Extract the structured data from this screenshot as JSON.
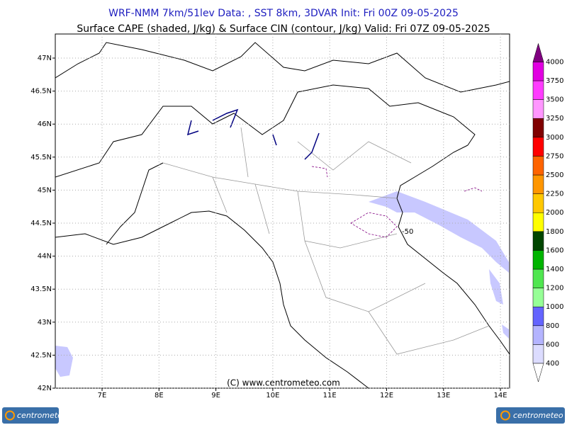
{
  "header": {
    "title": "WRF-NMM 7km/51lev   Data: , SST 8km, 3DVAR   Init: Fri 00Z 09-05-2025",
    "subtitle": "Surface CAPE (shaded, J/kg) & Surface CIN (contour, J/kg)   Valid: Fri 07Z 09-05-2025"
  },
  "map": {
    "lat_labels": [
      "47N",
      "46.5N",
      "46N",
      "45.5N",
      "45N",
      "44.5N",
      "44N",
      "43.5N",
      "43N",
      "42.5N",
      "42N"
    ],
    "lon_labels": [
      "7E",
      "8E",
      "9E",
      "10E",
      "11E",
      "12E",
      "13E",
      "14E"
    ],
    "contour_label": "-50",
    "copyright": "(C) www.centrometeo.com"
  },
  "colorbar": {
    "levels": [
      400,
      600,
      800,
      1000,
      1200,
      1400,
      1600,
      1800,
      2000,
      2250,
      2500,
      2750,
      3000,
      3250,
      3500,
      3750,
      4000
    ],
    "colors": [
      "#dcdcff",
      "#b4b4ff",
      "#6464ff",
      "#96ff96",
      "#50e650",
      "#00b400",
      "#004600",
      "#ffff00",
      "#ffc800",
      "#ff9600",
      "#ff6400",
      "#ff0000",
      "#800000",
      "#ff96ff",
      "#ff3cff",
      "#e100e1"
    ],
    "top_color": "#800080"
  },
  "logos": [
    "centrometeo",
    "centrometeo"
  ]
}
